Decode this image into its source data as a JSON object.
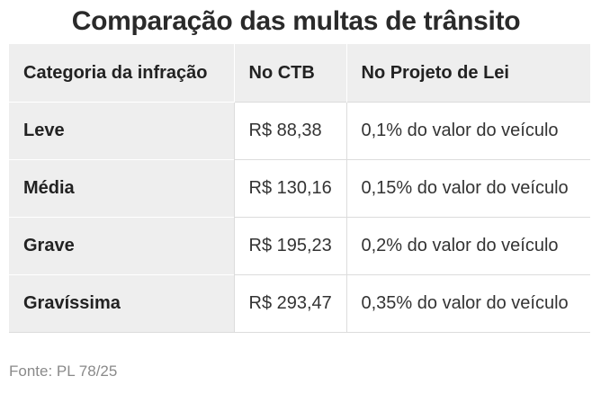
{
  "title": "Comparação das multas de trânsito",
  "table": {
    "headers": [
      "Categoria da infração",
      "No CTB",
      "No Projeto de Lei"
    ],
    "rows": [
      {
        "category": "Leve",
        "ctb": "R$ 88,38",
        "bill": "0,1% do valor do veículo"
      },
      {
        "category": "Média",
        "ctb": "R$ 130,16",
        "bill": "0,15% do valor do veículo"
      },
      {
        "category": "Grave",
        "ctb": "R$ 195,23",
        "bill": "0,2% do valor do veículo"
      },
      {
        "category": "Gravíssima",
        "ctb": "R$ 293,47",
        "bill": "0,35% do valor do veículo"
      }
    ]
  },
  "source": "Fonte: PL 78/25",
  "colors": {
    "header_background": "#eeeeee",
    "category_background": "#eeeeee",
    "row_divider": "#dcdcdc",
    "source_text": "#8a8a8a"
  }
}
